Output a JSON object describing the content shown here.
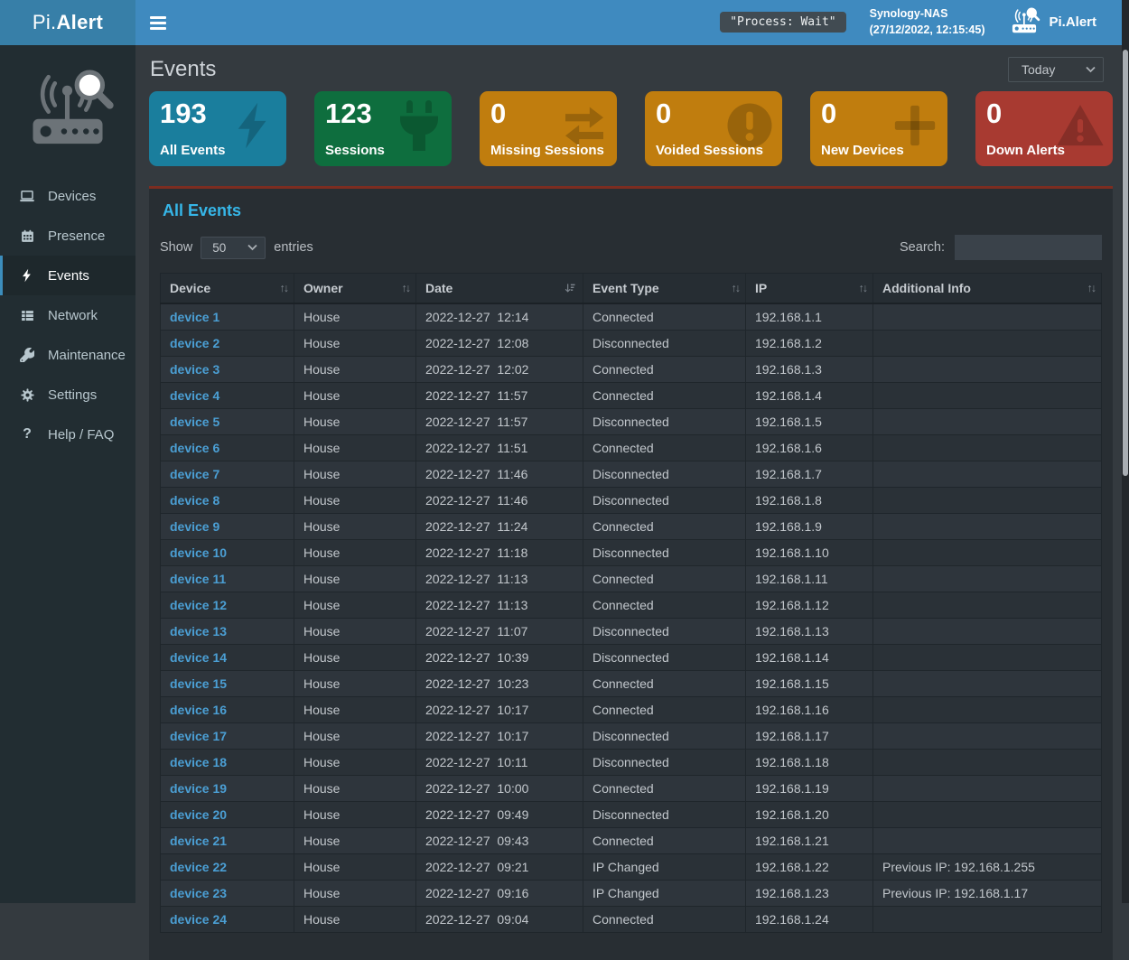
{
  "colors": {
    "navbar": "#3f8abf",
    "navbar_logo": "#377fa8",
    "sidebar": "#222d32",
    "sidebar_active_accent": "#3c8dbc",
    "panel": "#282e33",
    "panel_top_border": "#7c2d21",
    "panel_title": "#36b6e8",
    "link": "#4b9fd4",
    "card_blue": "#1a7e9d",
    "card_green": "#0e6e3e",
    "card_orange": "#c07d0e",
    "card_red": "#a83a31"
  },
  "topbar": {
    "brand_prefix": "Pi.",
    "brand_bold": "Alert",
    "process_badge": "\"Process: Wait\"",
    "host_name": "Synology-NAS",
    "host_timestamp": "(27/12/2022, 12:15:45)",
    "app_name": "Pi.Alert"
  },
  "sidebar": {
    "items": [
      {
        "label": "Devices",
        "icon": "laptop-icon",
        "active": false
      },
      {
        "label": "Presence",
        "icon": "calendar-icon",
        "active": false
      },
      {
        "label": "Events",
        "icon": "bolt-icon",
        "active": true
      },
      {
        "label": "Network",
        "icon": "network-icon",
        "active": false
      },
      {
        "label": "Maintenance",
        "icon": "wrench-icon",
        "active": false
      },
      {
        "label": "Settings",
        "icon": "gear-icon",
        "active": false
      },
      {
        "label": "Help / FAQ",
        "icon": "question-icon",
        "active": false
      }
    ]
  },
  "page": {
    "title": "Events",
    "period_value": "Today"
  },
  "cards": [
    {
      "value": "193",
      "label": "All Events",
      "icon": "bolt-icon",
      "color": "#1a7e9d"
    },
    {
      "value": "123",
      "label": "Sessions",
      "icon": "plug-icon",
      "color": "#0e6e3e"
    },
    {
      "value": "0",
      "label": "Missing Sessions",
      "icon": "exchange-icon",
      "color": "#c07d0e"
    },
    {
      "value": "0",
      "label": "Voided Sessions",
      "icon": "exclamation-circle-icon",
      "color": "#c07d0e"
    },
    {
      "value": "0",
      "label": "New Devices",
      "icon": "plus-icon",
      "color": "#c07d0e"
    },
    {
      "value": "0",
      "label": "Down Alerts",
      "icon": "warning-triangle-icon",
      "color": "#a83a31"
    }
  ],
  "table": {
    "title": "All Events",
    "show_label": "Show",
    "entries_label": "entries",
    "page_length": "50",
    "search_label": "Search:",
    "search_value": "",
    "columns": [
      {
        "label": "Device",
        "sort": "both"
      },
      {
        "label": "Owner",
        "sort": "both"
      },
      {
        "label": "Date",
        "sort": "desc"
      },
      {
        "label": "Event Type",
        "sort": "both"
      },
      {
        "label": "IP",
        "sort": "both"
      },
      {
        "label": "Additional Info",
        "sort": "both"
      }
    ],
    "rows": [
      [
        "device 1",
        "House",
        "2022-12-27",
        "12:14",
        "Connected",
        "192.168.1.1",
        ""
      ],
      [
        "device 2",
        "House",
        "2022-12-27",
        "12:08",
        "Disconnected",
        "192.168.1.2",
        ""
      ],
      [
        "device 3",
        "House",
        "2022-12-27",
        "12:02",
        "Connected",
        "192.168.1.3",
        ""
      ],
      [
        "device 4",
        "House",
        "2022-12-27",
        "11:57",
        "Connected",
        "192.168.1.4",
        ""
      ],
      [
        "device 5",
        "House",
        "2022-12-27",
        "11:57",
        "Disconnected",
        "192.168.1.5",
        ""
      ],
      [
        "device 6",
        "House",
        "2022-12-27",
        "11:51",
        "Connected",
        "192.168.1.6",
        ""
      ],
      [
        "device 7",
        "House",
        "2022-12-27",
        "11:46",
        "Disconnected",
        "192.168.1.7",
        ""
      ],
      [
        "device 8",
        "House",
        "2022-12-27",
        "11:46",
        "Disconnected",
        "192.168.1.8",
        ""
      ],
      [
        "device 9",
        "House",
        "2022-12-27",
        "11:24",
        "Connected",
        "192.168.1.9",
        ""
      ],
      [
        "device 10",
        "House",
        "2022-12-27",
        "11:18",
        "Disconnected",
        "192.168.1.10",
        ""
      ],
      [
        "device 11",
        "House",
        "2022-12-27",
        "11:13",
        "Connected",
        "192.168.1.11",
        ""
      ],
      [
        "device 12",
        "House",
        "2022-12-27",
        "11:13",
        "Connected",
        "192.168.1.12",
        ""
      ],
      [
        "device 13",
        "House",
        "2022-12-27",
        "11:07",
        "Disconnected",
        "192.168.1.13",
        ""
      ],
      [
        "device 14",
        "House",
        "2022-12-27",
        "10:39",
        "Disconnected",
        "192.168.1.14",
        ""
      ],
      [
        "device 15",
        "House",
        "2022-12-27",
        "10:23",
        "Connected",
        "192.168.1.15",
        ""
      ],
      [
        "device 16",
        "House",
        "2022-12-27",
        "10:17",
        "Connected",
        "192.168.1.16",
        ""
      ],
      [
        "device 17",
        "House",
        "2022-12-27",
        "10:17",
        "Disconnected",
        "192.168.1.17",
        ""
      ],
      [
        "device 18",
        "House",
        "2022-12-27",
        "10:11",
        "Disconnected",
        "192.168.1.18",
        ""
      ],
      [
        "device 19",
        "House",
        "2022-12-27",
        "10:00",
        "Connected",
        "192.168.1.19",
        ""
      ],
      [
        "device 20",
        "House",
        "2022-12-27",
        "09:49",
        "Disconnected",
        "192.168.1.20",
        ""
      ],
      [
        "device 21",
        "House",
        "2022-12-27",
        "09:43",
        "Connected",
        "192.168.1.21",
        ""
      ],
      [
        "device 22",
        "House",
        "2022-12-27",
        "09:21",
        "IP Changed",
        "192.168.1.22",
        "Previous IP: 192.168.1.255"
      ],
      [
        "device 23",
        "House",
        "2022-12-27",
        "09:16",
        "IP Changed",
        "192.168.1.23",
        "Previous IP: 192.168.1.17"
      ],
      [
        "device 24",
        "House",
        "2022-12-27",
        "09:04",
        "Connected",
        "192.168.1.24",
        ""
      ]
    ]
  }
}
